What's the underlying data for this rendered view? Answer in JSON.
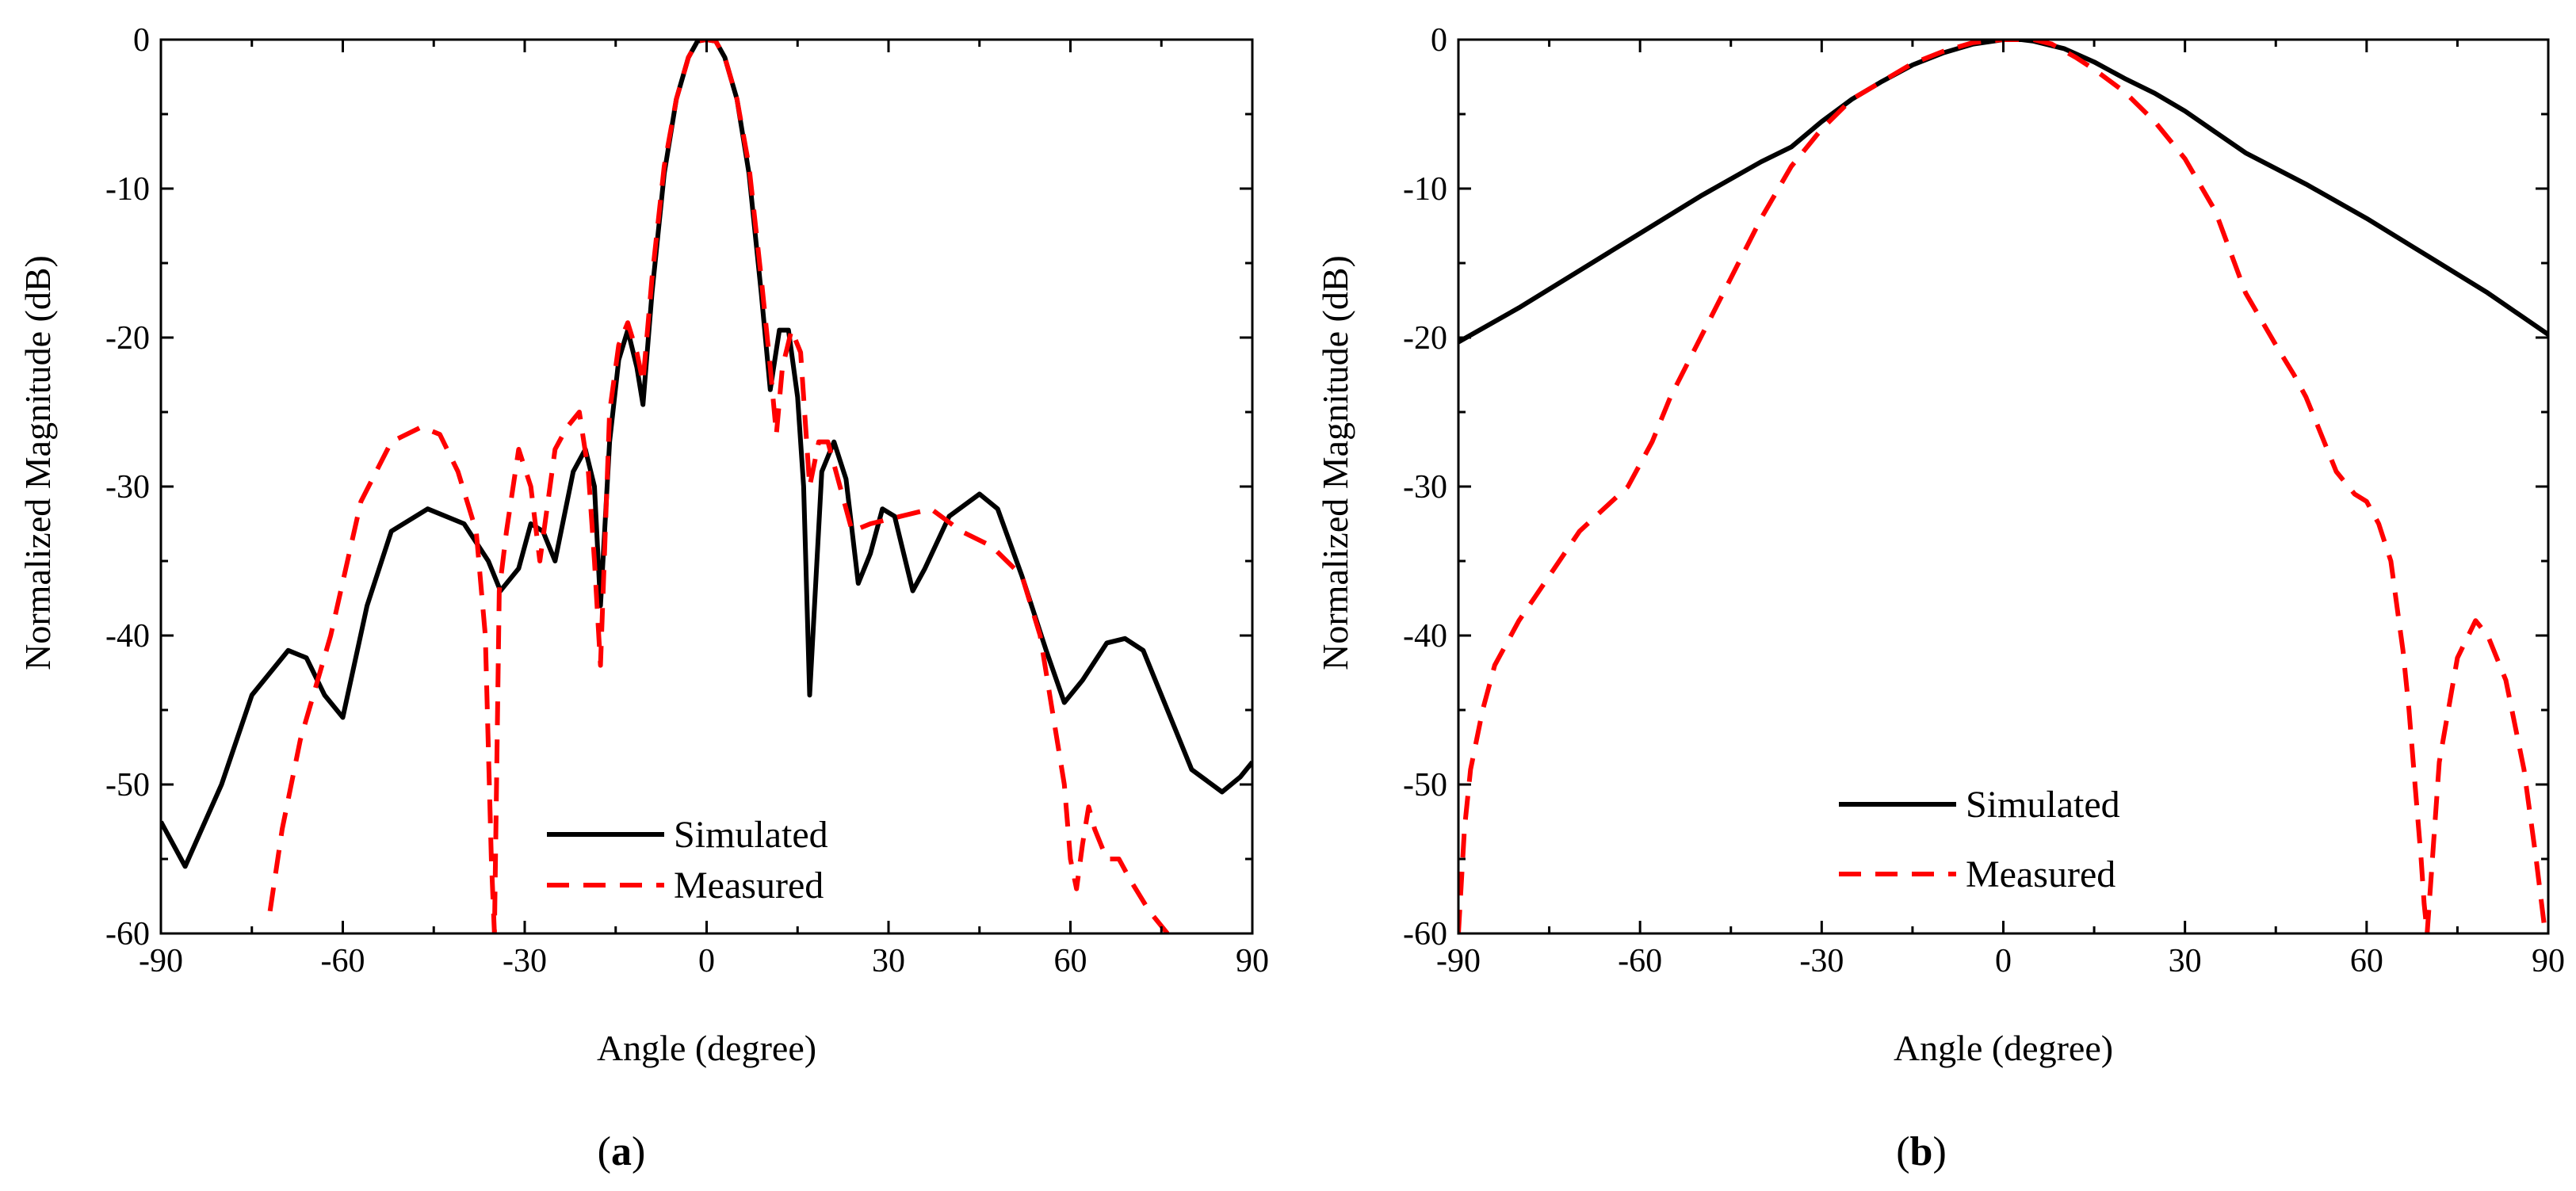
{
  "chart_data": [
    {
      "type": "line",
      "caption_letter": "a",
      "xlabel": "Angle (degree)",
      "ylabel": "Normalized Magnitude (dB)",
      "xlim": [
        -90,
        90
      ],
      "ylim": [
        -60,
        0
      ],
      "xticks": [
        "-90",
        "-60",
        "-30",
        "0",
        "30",
        "60",
        "90"
      ],
      "yticks": [
        "0",
        "-10",
        "-20",
        "-30",
        "-40",
        "-50",
        "-60"
      ],
      "legend_position": "bottom-center",
      "series": [
        {
          "name": "Simulated",
          "color": "#000000",
          "style": "solid",
          "x": [
            -90,
            -86,
            -80,
            -75,
            -69,
            -66,
            -63,
            -60,
            -56,
            -52,
            -46,
            -40,
            -36,
            -34,
            -31,
            -29,
            -27,
            -25,
            -22,
            -20,
            -18.5,
            -17.5,
            -16,
            -14.5,
            -13,
            -11.5,
            -10.5,
            -9,
            -7,
            -5,
            -3,
            -1.5,
            0,
            1.5,
            3,
            5,
            7,
            9,
            10.5,
            12,
            13.5,
            15,
            16,
            17,
            19,
            21,
            23,
            25,
            27,
            29,
            31,
            34,
            36,
            40,
            45,
            48,
            52,
            56,
            59,
            62,
            66,
            69,
            72,
            76,
            80,
            85,
            88,
            90
          ],
          "y": [
            -52.5,
            -55.5,
            -50,
            -44,
            -41,
            -41.5,
            -44,
            -45.5,
            -38,
            -33,
            -31.5,
            -32.5,
            -35,
            -37,
            -35.5,
            -32.5,
            -33,
            -35,
            -29,
            -27.5,
            -30,
            -38,
            -27,
            -21.5,
            -19.5,
            -22,
            -24.5,
            -17,
            -9,
            -4,
            -1.2,
            -0.1,
            0,
            -0.1,
            -1.2,
            -4,
            -9,
            -17,
            -23.5,
            -19.5,
            -19.5,
            -24,
            -30,
            -44,
            -29,
            -27,
            -29.5,
            -36.5,
            -34.5,
            -31.5,
            -32,
            -37,
            -35.5,
            -32,
            -30.5,
            -31.5,
            -36,
            -41,
            -44.5,
            -43,
            -40.5,
            -40.2,
            -41,
            -45,
            -49,
            -50.5,
            -49.5,
            -48.5
          ]
        },
        {
          "name": "Measured",
          "color": "#ff0000",
          "style": "dashed",
          "x": [
            -72,
            -70,
            -67,
            -62,
            -57,
            -52,
            -47,
            -44,
            -41,
            -38,
            -36.5,
            -35.5,
            -35,
            -34.2,
            -33,
            -31,
            -29,
            -27.5,
            -26.5,
            -25,
            -23,
            -21,
            -19.5,
            -18.5,
            -17.5,
            -16,
            -14.5,
            -13,
            -11.5,
            -10.5,
            -9,
            -7,
            -5,
            -3,
            -1.5,
            0,
            1.5,
            3,
            5,
            7,
            9,
            10.5,
            11.5,
            12.5,
            14,
            15.5,
            17,
            18.5,
            20,
            22,
            24,
            27,
            32,
            37,
            42,
            47,
            52,
            55,
            57,
            59,
            60,
            61,
            62,
            63,
            64,
            66,
            67,
            68,
            70,
            73,
            76
          ],
          "y": [
            -58.5,
            -53,
            -47,
            -40,
            -31,
            -27,
            -26,
            -26.5,
            -29,
            -33,
            -40,
            -55,
            -60,
            -37,
            -33,
            -27.5,
            -30,
            -35,
            -32,
            -27.5,
            -26,
            -25,
            -29,
            -35,
            -42,
            -25,
            -20.5,
            -19,
            -21,
            -23,
            -16,
            -8.5,
            -4,
            -1.2,
            -0.1,
            0,
            -0.1,
            -1.2,
            -4,
            -8.5,
            -16,
            -22,
            -26.5,
            -22,
            -19.5,
            -21,
            -30,
            -27,
            -27,
            -30,
            -33,
            -32.5,
            -32,
            -31.5,
            -33,
            -34,
            -36,
            -40,
            -45,
            -50,
            -55,
            -57,
            -54,
            -51.5,
            -53,
            -55,
            -55,
            -55,
            -56.5,
            -58.5,
            -60
          ]
        }
      ]
    },
    {
      "type": "line",
      "caption_letter": "b",
      "xlabel": "Angle (degree)",
      "ylabel": "Normalized Magnitude (dB)",
      "xlim": [
        -90,
        90
      ],
      "ylim": [
        -60,
        0
      ],
      "xticks": [
        "-90",
        "-60",
        "-30",
        "0",
        "30",
        "60",
        "90"
      ],
      "yticks": [
        "0",
        "-10",
        "-20",
        "-30",
        "-40",
        "-50",
        "-60"
      ],
      "legend_position": "bottom-center",
      "series": [
        {
          "name": "Simulated",
          "color": "#000000",
          "style": "solid",
          "x": [
            -90,
            -80,
            -70,
            -60,
            -50,
            -40,
            -35,
            -30,
            -25,
            -20,
            -15,
            -10,
            -5,
            0,
            3,
            5,
            10,
            15,
            20,
            25,
            30,
            35,
            40,
            50,
            60,
            70,
            80,
            90
          ],
          "y": [
            -20.3,
            -18,
            -15.5,
            -13,
            -10.5,
            -8.2,
            -7.2,
            -5.5,
            -4,
            -2.8,
            -1.7,
            -0.9,
            -0.3,
            0,
            0,
            -0.1,
            -0.6,
            -1.5,
            -2.6,
            -3.6,
            -4.8,
            -6.2,
            -7.6,
            -9.7,
            -12,
            -14.5,
            -17,
            -19.8
          ]
        },
        {
          "name": "Measured",
          "color": "#ff0000",
          "style": "dashed",
          "x": [
            -90,
            -89,
            -88,
            -86,
            -84,
            -80,
            -75,
            -70,
            -66,
            -62,
            -58,
            -55,
            -50,
            -45,
            -40,
            -35,
            -30,
            -25,
            -20,
            -15,
            -10,
            -5,
            0,
            3,
            5,
            8,
            12,
            15,
            20,
            25,
            30,
            35,
            40,
            45,
            48,
            50,
            55,
            58,
            60,
            62,
            64,
            65,
            66,
            67,
            68,
            69,
            69.5,
            70,
            72,
            75,
            78,
            80,
            83,
            86,
            88,
            89.5
          ],
          "y": [
            -60,
            -53,
            -49,
            -45,
            -42,
            -39,
            -36,
            -33,
            -31.5,
            -30,
            -27,
            -24,
            -20,
            -16,
            -12,
            -8.5,
            -6,
            -4,
            -2.8,
            -1.6,
            -0.8,
            -0.2,
            0,
            0,
            0,
            -0.3,
            -1.2,
            -2,
            -3.5,
            -5.5,
            -8,
            -11.5,
            -17,
            -20.5,
            -22.5,
            -24,
            -29,
            -30.5,
            -31,
            -32.5,
            -35,
            -38,
            -41,
            -45,
            -50,
            -55,
            -58,
            -60,
            -48.5,
            -41.5,
            -39,
            -40,
            -43,
            -49,
            -55,
            -60
          ]
        }
      ]
    }
  ]
}
